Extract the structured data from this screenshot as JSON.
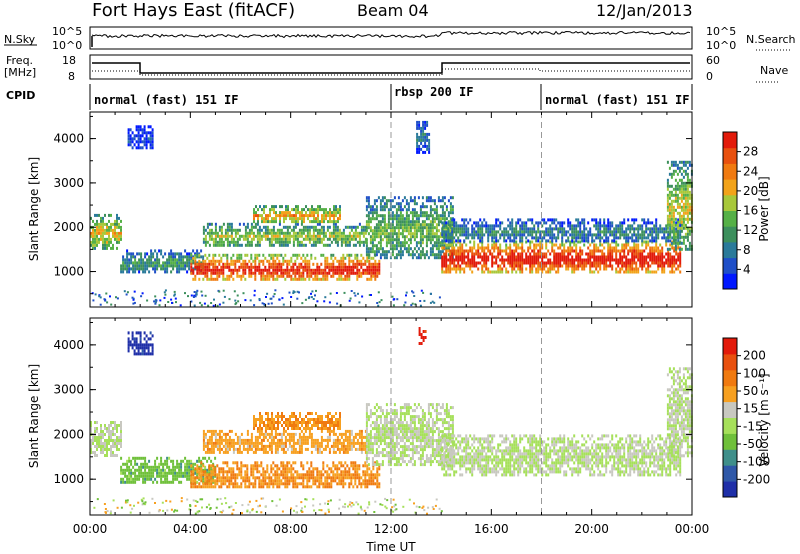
{
  "header": {
    "station": "Fort Hays East (fitACF)",
    "beam": "Beam 04",
    "date": "12/Jan/2013"
  },
  "strip_panels": {
    "nsky": {
      "left_label": "N.Sky",
      "right_label": "N.Search",
      "left_ticks": [
        "10^5",
        "10^0"
      ],
      "right_ticks": [
        "10^5",
        "10^0"
      ]
    },
    "freq": {
      "left_label_1": "Freq.",
      "left_label_2": "[MHz]",
      "right_label": "Nave",
      "left_ticks": [
        "18",
        "8"
      ],
      "right_ticks": [
        "60",
        "0"
      ]
    },
    "cpid": {
      "label": "CPID",
      "modes": [
        {
          "name": "normal (fast) 151 IF",
          "start_hour": 0,
          "end_hour": 12
        },
        {
          "name": "rbsp 200 IF",
          "start_hour": 12,
          "end_hour": 18
        },
        {
          "name": "normal (fast) 151 IF",
          "start_hour": 18,
          "end_hour": 24
        }
      ]
    }
  },
  "chart_data": [
    {
      "type": "heatmap",
      "name": "power",
      "ylabel": "Slant Range [km]",
      "xlabel": "",
      "yticks": [
        "1000",
        "2000",
        "3000",
        "4000"
      ],
      "ylim": [
        200,
        4600
      ],
      "xlim": [
        0,
        24
      ],
      "colorbar": {
        "label": "Power [dB]",
        "ticks": [
          "4",
          "8",
          "12",
          "16",
          "20",
          "24",
          "28"
        ],
        "colors": [
          "#0018ff",
          "#1f4fc8",
          "#2a7a9a",
          "#3c8f5c",
          "#55b046",
          "#a8c83a",
          "#f2a31a",
          "#f07a10",
          "#e8500e",
          "#e21a0a"
        ]
      },
      "bands": [
        {
          "t0": 0.0,
          "t1": 1.2,
          "r0": 1550,
          "r1": 2300,
          "level": 0.55
        },
        {
          "t0": 1.2,
          "t1": 4.5,
          "r0": 1000,
          "r1": 1500,
          "level": 0.3
        },
        {
          "t0": 4.0,
          "t1": 11.5,
          "r0": 800,
          "r1": 1400,
          "level": 0.85
        },
        {
          "t0": 4.5,
          "t1": 11.0,
          "r0": 1600,
          "r1": 2100,
          "level": 0.45
        },
        {
          "t0": 6.5,
          "t1": 10.0,
          "r0": 2100,
          "r1": 2500,
          "level": 0.6
        },
        {
          "t0": 11.0,
          "t1": 14.5,
          "r0": 1300,
          "r1": 2700,
          "level": 0.4
        },
        {
          "t0": 14.0,
          "t1": 23.5,
          "r0": 1000,
          "r1": 1700,
          "level": 0.9
        },
        {
          "t0": 14.0,
          "t1": 23.5,
          "r0": 1700,
          "r1": 2200,
          "level": 0.25
        },
        {
          "t0": 23.0,
          "t1": 24.0,
          "r0": 1500,
          "r1": 3500,
          "level": 0.5
        },
        {
          "t0": 1.5,
          "t1": 2.5,
          "r0": 3800,
          "r1": 4300,
          "level": 0.1
        },
        {
          "t0": 13.0,
          "t1": 13.5,
          "r0": 3700,
          "r1": 4400,
          "level": 0.2
        }
      ]
    },
    {
      "type": "heatmap",
      "name": "velocity",
      "ylabel": "Slant Range [km]",
      "xlabel": "Time UT",
      "yticks": [
        "1000",
        "2000",
        "3000",
        "4000"
      ],
      "xticks": [
        "00:00",
        "04:00",
        "08:00",
        "12:00",
        "16:00",
        "20:00",
        "00:00"
      ],
      "ylim": [
        200,
        4600
      ],
      "xlim": [
        0,
        24
      ],
      "colorbar": {
        "label": "Velocity [m s⁻¹]",
        "ticks": [
          "200",
          "100",
          "50",
          "15",
          "-15",
          "-50",
          "-100",
          "-200"
        ],
        "colors": [
          "#1f2fa8",
          "#2f58a8",
          "#3f8f8a",
          "#6fc03a",
          "#a6e05a",
          "#c8c8c0",
          "#f7a020",
          "#f07a10",
          "#e8500e",
          "#e21a0a"
        ]
      },
      "bands": [
        {
          "t0": 0.0,
          "t1": 1.2,
          "r0": 1550,
          "r1": 2300,
          "level": 0.5
        },
        {
          "t0": 1.2,
          "t1": 5.0,
          "r0": 900,
          "r1": 1500,
          "level": 0.35
        },
        {
          "t0": 4.0,
          "t1": 11.5,
          "r0": 800,
          "r1": 1400,
          "level": 0.7
        },
        {
          "t0": 4.5,
          "t1": 11.0,
          "r0": 1600,
          "r1": 2100,
          "level": 0.65
        },
        {
          "t0": 6.5,
          "t1": 10.0,
          "r0": 2100,
          "r1": 2500,
          "level": 0.7
        },
        {
          "t0": 11.0,
          "t1": 14.5,
          "r0": 1300,
          "r1": 2700,
          "level": 0.5
        },
        {
          "t0": 14.0,
          "t1": 23.5,
          "r0": 1100,
          "r1": 2000,
          "level": 0.5
        },
        {
          "t0": 23.0,
          "t1": 24.0,
          "r0": 1500,
          "r1": 3500,
          "level": 0.5
        },
        {
          "t0": 13.1,
          "t1": 13.4,
          "r0": 4000,
          "r1": 4400,
          "level": 0.95
        },
        {
          "t0": 1.5,
          "t1": 2.5,
          "r0": 3800,
          "r1": 4300,
          "level": 0.05
        }
      ]
    }
  ]
}
